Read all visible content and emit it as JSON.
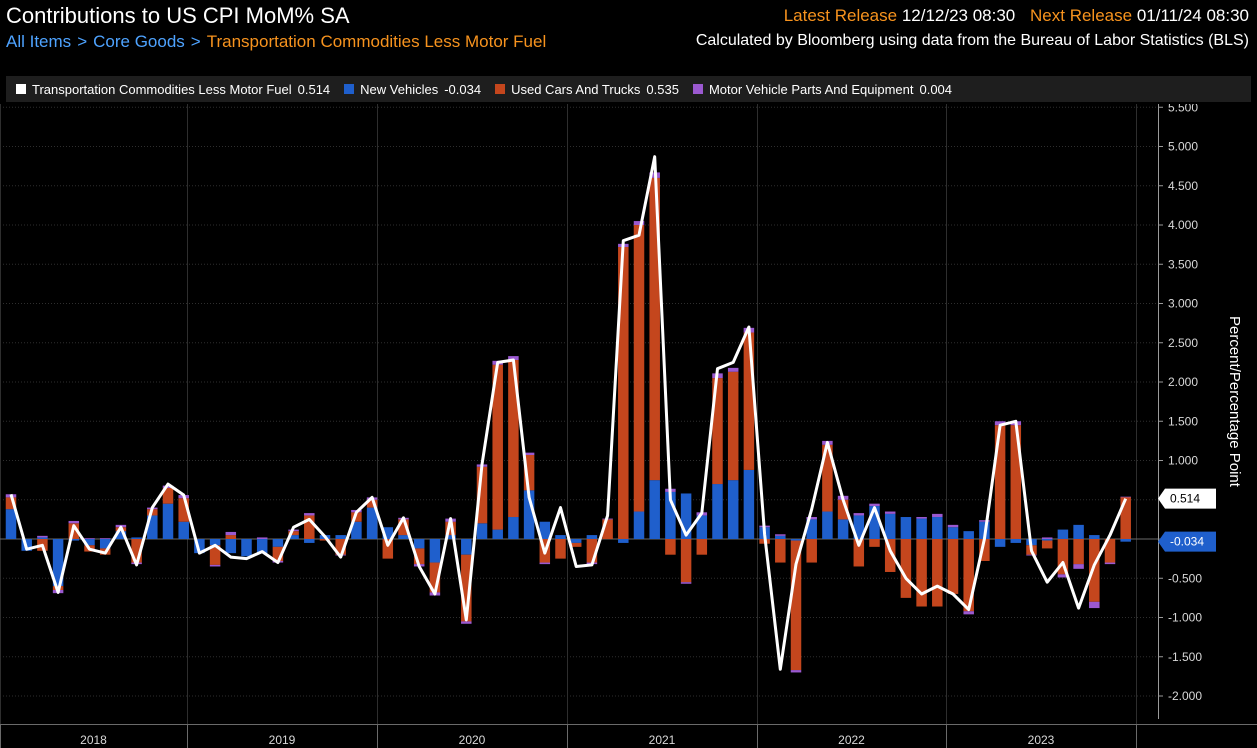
{
  "header": {
    "title": "Contributions to US CPI MoM% SA",
    "latest_label": "Latest Release",
    "latest_value": "12/12/23 08:30",
    "next_label": "Next Release",
    "next_value": "01/11/24 08:30",
    "breadcrumb": [
      "All Items",
      "Core Goods",
      "Transportation Commodities Less Motor Fuel"
    ],
    "source": "Calculated by Bloomberg using data from the Bureau of Labor Statistics (BLS)"
  },
  "legend": [
    {
      "label": "Transportation Commodities Less Motor Fuel",
      "value": "0.514",
      "color": "#ffffff"
    },
    {
      "label": "New Vehicles",
      "value": "-0.034",
      "color": "#1f5fcc"
    },
    {
      "label": "Used Cars And Trucks",
      "value": "0.535",
      "color": "#c4461d"
    },
    {
      "label": "Motor Vehicle Parts And Equipment",
      "value": "0.004",
      "color": "#9b59d0"
    }
  ],
  "chart_data": {
    "type": "bar",
    "stacked": true,
    "x_start": "2017-08",
    "x_end": "2023-11",
    "ylabel": "Percent/Percentage Point",
    "ylim": [
      -2.3,
      5.6
    ],
    "yticks": [
      "5.500",
      "5.000",
      "4.500",
      "4.000",
      "3.500",
      "3.000",
      "2.500",
      "2.000",
      "1.500",
      "1.000",
      "0.500",
      "0.000",
      "-0.500",
      "-1.000",
      "-1.500",
      "-2.000"
    ],
    "xticks": [
      "2018",
      "2019",
      "2020",
      "2021",
      "2022",
      "2023"
    ],
    "last_value_labels": [
      {
        "text": "0.514",
        "value": 0.514,
        "color": "#ffffff"
      },
      {
        "text": "-0.034",
        "value": -0.034,
        "color": "#1f5fcc"
      }
    ],
    "series": [
      {
        "name": "New Vehicles",
        "color": "#1f5fcc",
        "values": [
          0.38,
          -0.15,
          0.02,
          -0.6,
          -0.02,
          -0.08,
          -0.12,
          0.1,
          0.02,
          0.3,
          0.45,
          0.22,
          -0.18,
          -0.08,
          -0.18,
          -0.22,
          -0.18,
          -0.1,
          0.05,
          -0.05,
          0.05,
          0.05,
          0.22,
          0.4,
          0.15,
          0.05,
          -0.12,
          -0.3,
          0.05,
          -0.2,
          0.2,
          0.12,
          0.28,
          0.62,
          0.22,
          0.05,
          -0.05,
          0.05,
          0.0,
          -0.05,
          0.35,
          0.75,
          0.6,
          0.58,
          0.3,
          0.7,
          0.75,
          0.88,
          0.15,
          0.04,
          -0.02,
          0.25,
          0.35,
          0.25,
          0.3,
          0.42,
          0.32,
          0.28,
          0.26,
          0.28,
          0.15,
          0.1,
          0.22,
          -0.1,
          -0.05,
          -0.08,
          -0.02,
          0.12,
          0.18,
          0.05,
          0.0,
          -0.034
        ]
      },
      {
        "name": "Used Cars And Trucks",
        "color": "#c4461d",
        "values": [
          0.15,
          0.0,
          -0.15,
          -0.05,
          0.2,
          -0.08,
          -0.08,
          0.05,
          -0.3,
          0.08,
          0.2,
          0.3,
          0.0,
          -0.25,
          0.05,
          0.0,
          0.0,
          -0.18,
          0.05,
          0.3,
          -0.02,
          -0.2,
          0.12,
          0.1,
          -0.25,
          0.2,
          -0.2,
          -0.38,
          0.17,
          -0.85,
          0.72,
          2.1,
          2.0,
          0.45,
          -0.3,
          -0.25,
          -0.05,
          -0.3,
          0.25,
          3.72,
          3.65,
          3.85,
          -0.2,
          -0.55,
          -0.2,
          1.35,
          1.38,
          1.75,
          -0.06,
          -0.3,
          -1.65,
          -0.3,
          0.85,
          0.25,
          -0.35,
          -0.1,
          -0.42,
          -0.75,
          -0.86,
          -0.86,
          -0.7,
          -0.92,
          -0.28,
          1.45,
          1.45,
          -0.12,
          -0.1,
          -0.45,
          -0.32,
          -0.8,
          -0.3,
          0.535
        ]
      },
      {
        "name": "Motor Vehicle Parts And Equipment",
        "color": "#9b59d0",
        "values": [
          0.04,
          0.0,
          0.02,
          -0.04,
          0.03,
          0.01,
          0.01,
          0.03,
          -0.02,
          0.02,
          0.03,
          0.04,
          0.0,
          -0.02,
          0.04,
          0.0,
          0.02,
          -0.02,
          0.02,
          0.03,
          0.0,
          -0.01,
          0.03,
          0.03,
          0.0,
          0.02,
          -0.03,
          -0.04,
          0.04,
          -0.03,
          0.03,
          0.05,
          0.05,
          0.03,
          -0.02,
          0.0,
          0.0,
          -0.02,
          0.01,
          0.04,
          0.05,
          0.07,
          0.04,
          -0.02,
          0.04,
          0.06,
          0.05,
          0.06,
          0.02,
          0.02,
          -0.03,
          0.03,
          0.05,
          0.05,
          0.03,
          0.03,
          0.03,
          0.0,
          0.02,
          0.04,
          0.03,
          -0.04,
          0.02,
          0.05,
          0.05,
          -0.01,
          0.02,
          -0.04,
          -0.06,
          -0.08,
          -0.02,
          0.004
        ]
      },
      {
        "name": "Transportation Commodities Less Motor Fuel",
        "color": "#ffffff",
        "type": "line",
        "values": [
          0.57,
          -0.13,
          -0.08,
          -0.68,
          0.17,
          -0.13,
          -0.18,
          0.15,
          -0.33,
          0.4,
          0.7,
          0.56,
          -0.18,
          -0.08,
          -0.23,
          -0.25,
          -0.16,
          -0.3,
          0.15,
          0.25,
          0.03,
          -0.23,
          0.34,
          0.53,
          -0.08,
          0.27,
          -0.35,
          -0.7,
          0.26,
          -1.03,
          0.95,
          2.25,
          2.28,
          0.53,
          -0.18,
          0.4,
          -0.35,
          -0.33,
          0.3,
          3.8,
          3.87,
          4.87,
          0.5,
          0.05,
          0.33,
          2.17,
          2.25,
          2.7,
          0.06,
          -1.66,
          -0.32,
          0.38,
          1.23,
          0.5,
          -0.08,
          0.4,
          -0.15,
          -0.5,
          -0.7,
          -0.6,
          -0.7,
          -0.9,
          0.0,
          1.45,
          1.5,
          -0.15,
          -0.55,
          -0.3,
          -0.88,
          -0.33,
          0.05,
          0.514
        ]
      }
    ]
  }
}
